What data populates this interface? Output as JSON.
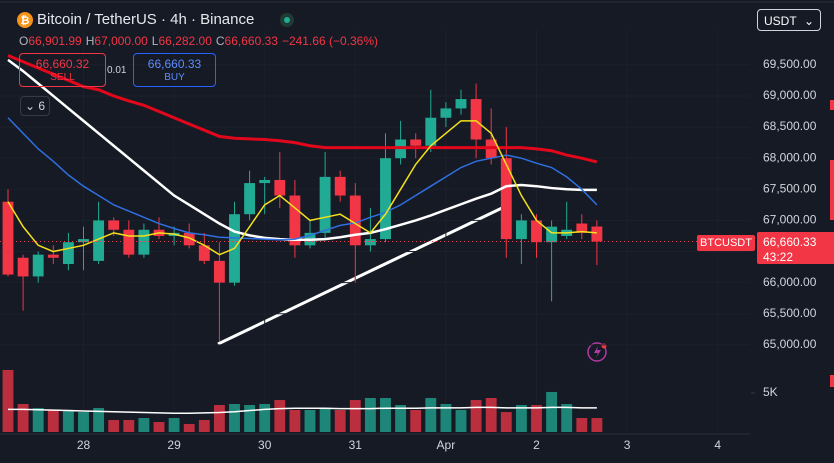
{
  "header": {
    "symbol": "Bitcoin / TetherUS · 4h · Binance",
    "currency": "USDT",
    "ohlc": [
      {
        "key": "O",
        "value": "66,901.99"
      },
      {
        "key": "H",
        "value": "67,000.00"
      },
      {
        "key": "L",
        "value": "66,282.00"
      },
      {
        "key": "C",
        "value": "66,660.33"
      }
    ],
    "change": "−241.66 (−0.36%)"
  },
  "trade": {
    "sell_price": "66,660.32",
    "sell": "SELL",
    "spread": "0.01",
    "buy_price": "66,660.33",
    "buy": "BUY",
    "indicators": "6"
  },
  "price_tag": {
    "symbol": "BTCUSDT",
    "price": "66,660.33",
    "countdown": "43:22"
  },
  "chart_data": {
    "type": "candlestick",
    "open": [
      67300,
      66400,
      66100,
      66450,
      66300,
      66650,
      66350,
      67000,
      66850,
      66450,
      66850,
      66750,
      66800,
      66600,
      66350,
      66000,
      67100,
      67600,
      67650,
      67400,
      66600,
      66800,
      67700,
      67400,
      66600,
      66700,
      68000,
      68300,
      68200,
      68650,
      68800,
      68950,
      68300,
      68000,
      66700,
      67000,
      66650,
      66750,
      66950,
      66901.99
    ],
    "high": [
      67500,
      66450,
      66500,
      66600,
      66800,
      66900,
      67300,
      67050,
      67000,
      66950,
      67050,
      66900,
      66950,
      66800,
      66650,
      67300,
      67800,
      67700,
      68100,
      67650,
      67000,
      68100,
      67800,
      67600,
      67200,
      68400,
      68600,
      68400,
      69100,
      68900,
      69100,
      69200,
      68800,
      68500,
      67100,
      67100,
      67000,
      67300,
      67100,
      67000
    ],
    "low": [
      66100,
      65550,
      66000,
      66300,
      66200,
      66200,
      66300,
      66750,
      66400,
      66400,
      66700,
      66600,
      66550,
      66300,
      65050,
      65950,
      67000,
      67100,
      67200,
      66400,
      66550,
      66700,
      67300,
      66000,
      66500,
      66650,
      67900,
      68000,
      68100,
      68500,
      68700,
      68000,
      67900,
      66400,
      66300,
      66400,
      65700,
      66700,
      66700,
      66282
    ],
    "close": [
      66130,
      66100,
      66450,
      66400,
      66650,
      66700,
      67000,
      66850,
      66450,
      66850,
      66750,
      66800,
      66600,
      66350,
      66000,
      67100,
      67600,
      67650,
      67400,
      66600,
      66800,
      67700,
      67400,
      66600,
      66700,
      68000,
      68300,
      68200,
      68650,
      68800,
      68950,
      68300,
      68000,
      66700,
      67000,
      66650,
      66900,
      66850,
      66800,
      66660.33
    ],
    "up_color": "#22ab94",
    "down_color": "#f23645",
    "overlays": [
      {
        "color": "#e2071b",
        "values": [
          69650,
          69550,
          69450,
          69350,
          69250,
          69150,
          69100,
          69000,
          68920,
          68850,
          68750,
          68650,
          68550,
          68450,
          68350,
          68320,
          68310,
          68300,
          68280,
          68250,
          68200,
          68170,
          68170,
          68170,
          68170,
          68170,
          68170,
          68170,
          68170,
          68170,
          68170,
          68170,
          68170,
          68170,
          68170,
          68150,
          68120,
          68050,
          68000,
          67940
        ]
      },
      {
        "color": "#ffffff",
        "values": [
          69580,
          69400,
          69200,
          69000,
          68800,
          68600,
          68400,
          68200,
          68000,
          67800,
          67600,
          67400,
          67250,
          67100,
          66950,
          66820,
          66760,
          66720,
          66700,
          66690,
          66690,
          66700,
          66730,
          66770,
          66800,
          66860,
          66930,
          67000,
          67080,
          67170,
          67260,
          67350,
          67430,
          67550,
          67570,
          67550,
          67520,
          67500,
          67490,
          67490
        ]
      },
      {
        "color": "#2f6fe0",
        "values": [
          68650,
          68400,
          68150,
          67950,
          67730,
          67550,
          67400,
          67250,
          67150,
          67050,
          66950,
          66870,
          66800,
          66770,
          66730,
          66720,
          66710,
          66700,
          66690,
          66700,
          66760,
          66840,
          66920,
          66960,
          67050,
          67130,
          67250,
          67400,
          67550,
          67700,
          67850,
          67950,
          68000,
          68050,
          68000,
          67920,
          67850,
          67700,
          67500,
          67250
        ]
      },
      {
        "color": "#f5e11b",
        "values": [
          67300,
          66900,
          66600,
          66500,
          66550,
          66600,
          66700,
          66800,
          66750,
          66750,
          66800,
          66780,
          66720,
          66600,
          66450,
          66550,
          66900,
          67250,
          67400,
          67200,
          67000,
          67050,
          67100,
          66950,
          66800,
          67100,
          67500,
          67900,
          68200,
          68400,
          68600,
          68600,
          68400,
          67900,
          67400,
          67000,
          66800,
          66800,
          66820,
          66800
        ]
      }
    ],
    "volume": [
      7950,
      3590,
      3080,
      2820,
      2820,
      2560,
      3080,
      1540,
      1540,
      1790,
      1280,
      1790,
      1030,
      1540,
      3460,
      3590,
      3460,
      3590,
      4100,
      2820,
      2820,
      3080,
      2820,
      4100,
      4360,
      4360,
      3460,
      2820,
      4360,
      3590,
      2820,
      4100,
      4360,
      2560,
      3460,
      3460,
      5130,
      3590,
      1790,
      1790
    ],
    "volume_ma": [
      2900,
      2900,
      2850,
      2800,
      2750,
      2700,
      2650,
      2600,
      2550,
      2500,
      2450,
      2400,
      2400,
      2450,
      2500,
      2600,
      2750,
      2900,
      3000,
      3050,
      3050,
      3050,
      3000,
      3000,
      3000,
      3050,
      3050,
      3050,
      3100,
      3100,
      3100,
      3150,
      3150,
      3100,
      3100,
      3100,
      3150,
      3150,
      3100,
      3100
    ],
    "xlim": [
      -0.53,
      49.14
    ],
    "xticks": [
      {
        "value": 5,
        "label": "28"
      },
      {
        "value": 11,
        "label": "29"
      },
      {
        "value": 17,
        "label": "30"
      },
      {
        "value": 23,
        "label": "31"
      },
      {
        "value": 29,
        "label": "Apr"
      },
      {
        "value": 35,
        "label": "2"
      },
      {
        "value": 41,
        "label": "3"
      },
      {
        "value": 47,
        "label": "4"
      }
    ],
    "ylim": [
      63600,
      70060
    ],
    "yticks": [
      {
        "value": 65000,
        "label": "65,000.00"
      },
      {
        "value": 65500,
        "label": "65,500.00"
      },
      {
        "value": 66000,
        "label": "66,000.00"
      },
      {
        "value": 66500,
        "label": "66,500.00"
      },
      {
        "value": 67000,
        "label": "67,000.00"
      },
      {
        "value": 67500,
        "label": "67,500.00"
      },
      {
        "value": 68000,
        "label": "68,000.00"
      },
      {
        "value": 68500,
        "label": "68,500.00"
      },
      {
        "value": 69000,
        "label": "69,000.00"
      },
      {
        "value": 69500,
        "label": "69,500.00"
      }
    ],
    "y2lim": [
      0,
      51540
    ],
    "y2ticks": [
      {
        "value": 5000,
        "label": "5K"
      }
    ],
    "grid": true
  }
}
